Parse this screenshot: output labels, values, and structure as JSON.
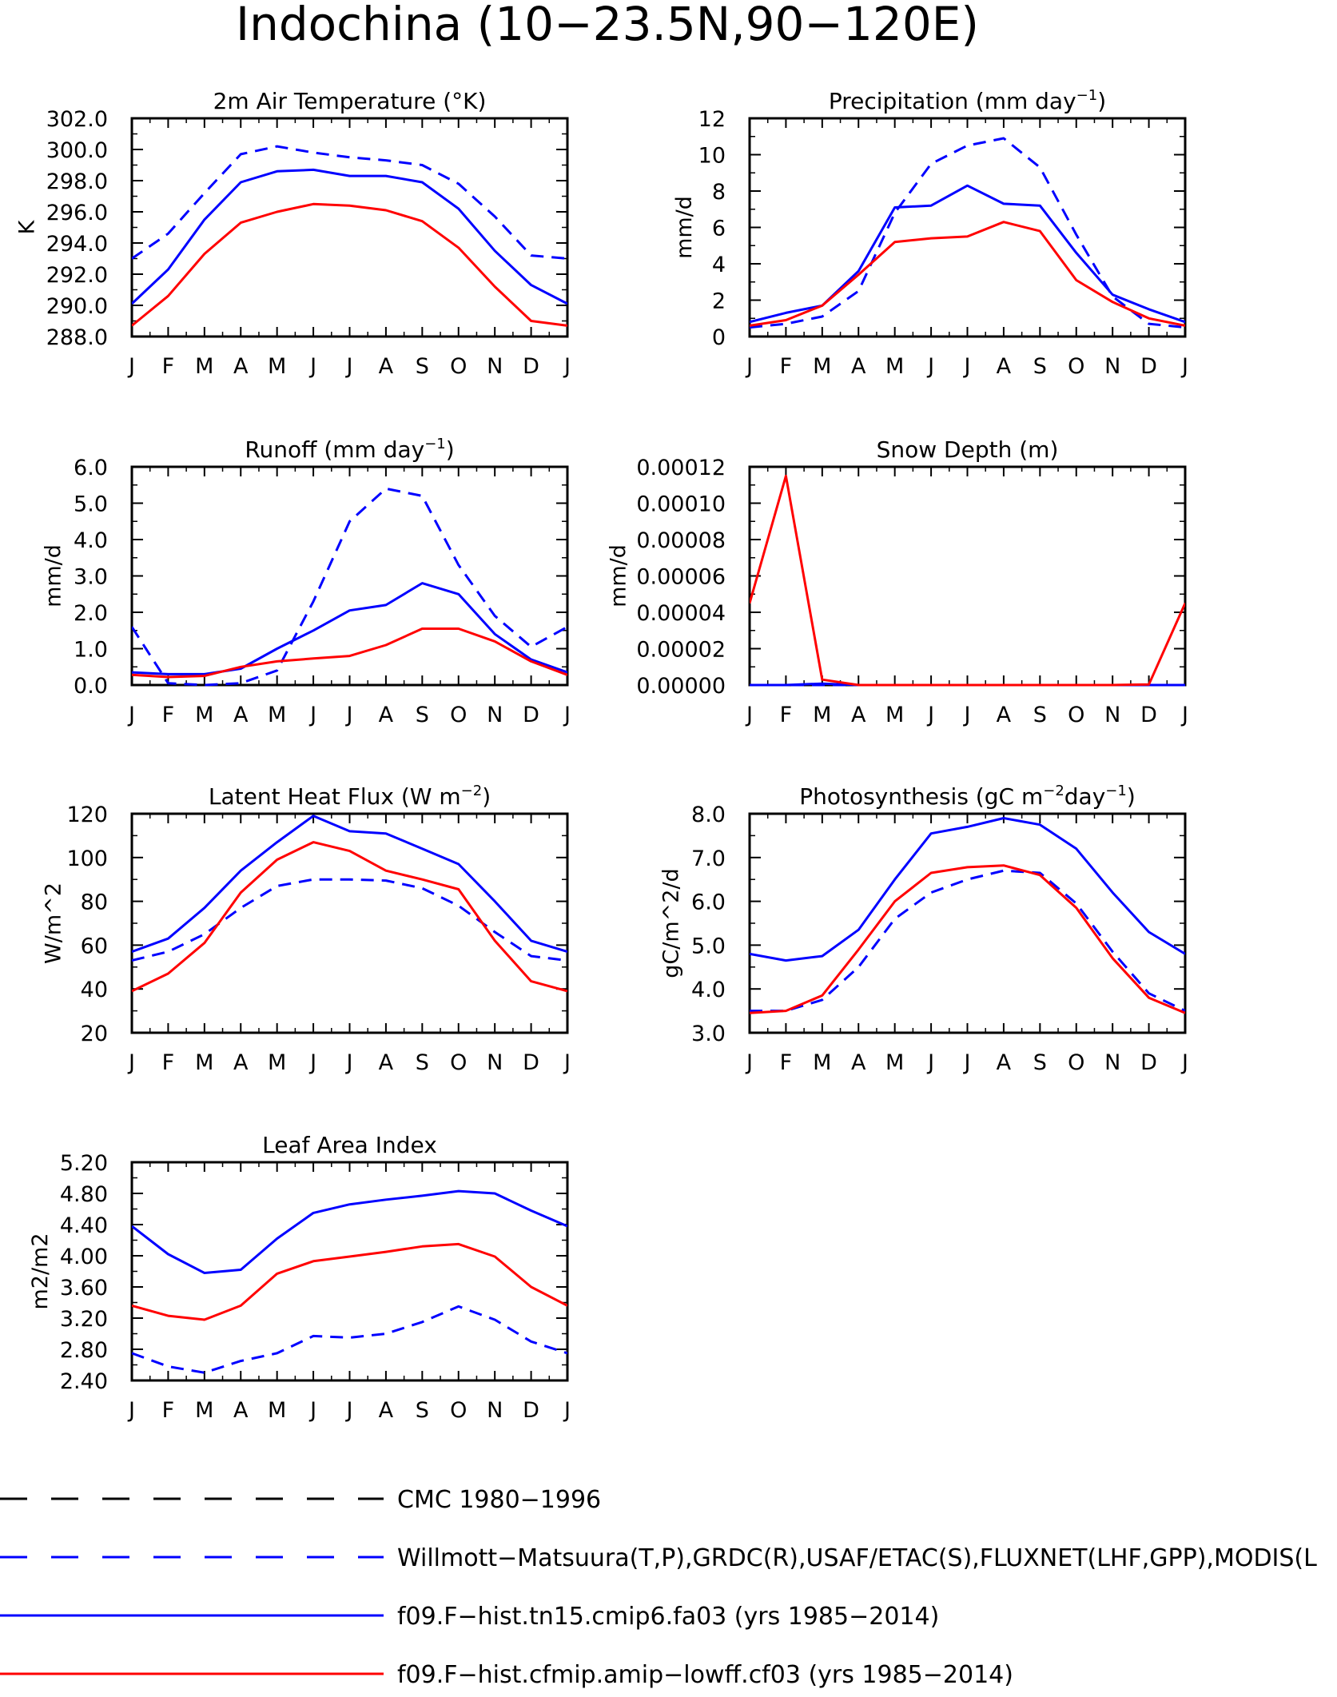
{
  "figure_title": "Indochina (10−23.5N,90−120E)",
  "months": [
    "J",
    "F",
    "M",
    "A",
    "M",
    "J",
    "J",
    "A",
    "S",
    "O",
    "N",
    "D",
    "J"
  ],
  "legend": [
    {
      "label": "CMC 1980−1996",
      "color": "#000000",
      "dashed": true
    },
    {
      "label": "Willmott−Matsuura(T,P),GRDC(R),USAF/ETAC(S),FLUXNET(LHF,GPP),MODIS(L",
      "color": "#0000ff",
      "dashed": true
    },
    {
      "label": "f09.F−hist.tn15.cmip6.fa03 (yrs 1985−2014)",
      "color": "#0000ff",
      "dashed": false
    },
    {
      "label": "f09.F−hist.cfmip.amip−lowff.cf03 (yrs 1985−2014)",
      "color": "#ff0000",
      "dashed": false
    }
  ],
  "chart_data": [
    {
      "type": "line",
      "title": "2m Air Temperature (°K)",
      "ylabel": "K",
      "ylim": [
        288,
        302
      ],
      "yticks": [
        288,
        290,
        292,
        294,
        296,
        298,
        300,
        302
      ],
      "yticklabels": [
        "288.0",
        "290.0",
        "292.0",
        "294.0",
        "296.0",
        "298.0",
        "300.0",
        "302.0"
      ],
      "series": [
        {
          "color": "#0000ff",
          "dashed": true,
          "values": [
            293.0,
            294.6,
            297.2,
            299.7,
            300.2,
            299.8,
            299.5,
            299.3,
            299.0,
            297.8,
            295.7,
            293.2,
            293.0
          ]
        },
        {
          "color": "#0000ff",
          "dashed": false,
          "values": [
            290.1,
            292.3,
            295.5,
            297.9,
            298.6,
            298.7,
            298.3,
            298.3,
            297.9,
            296.2,
            293.5,
            291.3,
            290.1
          ]
        },
        {
          "color": "#ff0000",
          "dashed": false,
          "values": [
            288.7,
            290.6,
            293.3,
            295.3,
            296.0,
            296.5,
            296.4,
            296.1,
            295.4,
            293.7,
            291.2,
            289.0,
            288.7
          ]
        }
      ]
    },
    {
      "type": "line",
      "title": "Precipitation (mm day",
      "title_sup": "−1",
      "title_tail": ")",
      "ylabel": "mm/d",
      "ylim": [
        0,
        12
      ],
      "yticks": [
        0,
        2,
        4,
        6,
        8,
        10,
        12
      ],
      "yticklabels": [
        "0",
        "2",
        "4",
        "6",
        "8",
        "10",
        "12"
      ],
      "series": [
        {
          "color": "#0000ff",
          "dashed": true,
          "values": [
            0.5,
            0.7,
            1.1,
            2.5,
            6.8,
            9.5,
            10.5,
            10.9,
            9.3,
            5.6,
            2.2,
            0.7,
            0.5
          ]
        },
        {
          "color": "#0000ff",
          "dashed": false,
          "values": [
            0.8,
            1.3,
            1.7,
            3.6,
            7.1,
            7.2,
            8.3,
            7.3,
            7.2,
            4.6,
            2.3,
            1.5,
            0.8
          ]
        },
        {
          "color": "#ff0000",
          "dashed": false,
          "values": [
            0.6,
            0.9,
            1.7,
            3.4,
            5.2,
            5.4,
            5.5,
            6.3,
            5.8,
            3.1,
            1.9,
            1.0,
            0.6
          ]
        }
      ]
    },
    {
      "type": "line",
      "title": "Runoff (mm day",
      "title_sup": "−1",
      "title_tail": ")",
      "ylabel": "mm/d",
      "ylim": [
        0,
        6
      ],
      "yticks": [
        0,
        1,
        2,
        3,
        4,
        5,
        6
      ],
      "yticklabels": [
        "0.0",
        "1.0",
        "2.0",
        "3.0",
        "4.0",
        "5.0",
        "6.0"
      ],
      "series": [
        {
          "color": "#0000ff",
          "dashed": true,
          "values": [
            1.6,
            0.05,
            0.0,
            0.05,
            0.4,
            2.3,
            4.5,
            5.4,
            5.2,
            3.3,
            1.9,
            1.05,
            1.6
          ]
        },
        {
          "color": "#0000ff",
          "dashed": false,
          "values": [
            0.35,
            0.3,
            0.3,
            0.45,
            1.0,
            1.5,
            2.05,
            2.2,
            2.8,
            2.5,
            1.4,
            0.7,
            0.35
          ]
        },
        {
          "color": "#ff0000",
          "dashed": false,
          "values": [
            0.28,
            0.22,
            0.25,
            0.5,
            0.65,
            0.73,
            0.8,
            1.1,
            1.55,
            1.55,
            1.2,
            0.65,
            0.28
          ]
        }
      ]
    },
    {
      "type": "line",
      "title": "Snow Depth (m)",
      "ylabel": "mm/d",
      "ylim": [
        0,
        0.00012
      ],
      "yticks": [
        0,
        2e-05,
        4e-05,
        6e-05,
        8e-05,
        0.0001,
        0.00012
      ],
      "yticklabels": [
        "0.00000",
        "0.00002",
        "0.00004",
        "0.00006",
        "0.00008",
        "0.00010",
        "0.00012"
      ],
      "series": [
        {
          "color": "#0000ff",
          "dashed": true,
          "values": [
            0,
            0,
            0,
            0,
            0,
            0,
            0,
            0,
            0,
            0,
            0,
            0,
            0
          ]
        },
        {
          "color": "#0000ff",
          "dashed": false,
          "values": [
            0,
            0,
            8e-07,
            0,
            0,
            0,
            0,
            0,
            0,
            0,
            0,
            0,
            0
          ]
        },
        {
          "color": "#ff0000",
          "dashed": false,
          "values": [
            4.5e-05,
            0.000115,
            3e-06,
            0,
            0,
            0,
            0,
            0,
            0,
            0,
            0,
            3e-07,
            4.5e-05
          ]
        }
      ]
    },
    {
      "type": "line",
      "title": "Latent Heat Flux (W m",
      "title_sup": "−2",
      "title_tail": ")",
      "ylabel": "W/m^2",
      "ylim": [
        20,
        120
      ],
      "yticks": [
        20,
        40,
        60,
        80,
        100,
        120
      ],
      "yticklabels": [
        "20",
        "40",
        "60",
        "80",
        "100",
        "120"
      ],
      "series": [
        {
          "color": "#0000ff",
          "dashed": true,
          "values": [
            53,
            57,
            65,
            77,
            87,
            90,
            90,
            89.5,
            86,
            78,
            66,
            55,
            53
          ]
        },
        {
          "color": "#0000ff",
          "dashed": false,
          "values": [
            57,
            63,
            77,
            94,
            107,
            119,
            112,
            111,
            104,
            97,
            80,
            62,
            57
          ]
        },
        {
          "color": "#ff0000",
          "dashed": false,
          "values": [
            39,
            47,
            61,
            84,
            99,
            107,
            103,
            94,
            90,
            85.5,
            62,
            43.5,
            39
          ]
        }
      ]
    },
    {
      "type": "line",
      "title": "Photosynthesis (gC m",
      "title_sup": "−2",
      "title_mid": "day",
      "title_sup2": "−1",
      "title_tail": ")",
      "ylabel": "gC/m^2/d",
      "ylim": [
        3,
        8
      ],
      "yticks": [
        3,
        4,
        5,
        6,
        7,
        8
      ],
      "yticklabels": [
        "3.0",
        "4.0",
        "5.0",
        "6.0",
        "7.0",
        "8.0"
      ],
      "series": [
        {
          "color": "#0000ff",
          "dashed": true,
          "values": [
            3.5,
            3.5,
            3.75,
            4.5,
            5.6,
            6.2,
            6.5,
            6.7,
            6.65,
            5.95,
            4.85,
            3.9,
            3.5
          ]
        },
        {
          "color": "#0000ff",
          "dashed": false,
          "values": [
            4.8,
            4.65,
            4.75,
            5.35,
            6.5,
            7.55,
            7.7,
            7.9,
            7.75,
            7.2,
            6.2,
            5.3,
            4.8
          ]
        },
        {
          "color": "#ff0000",
          "dashed": false,
          "values": [
            3.45,
            3.5,
            3.85,
            4.9,
            6.0,
            6.65,
            6.78,
            6.82,
            6.6,
            5.85,
            4.7,
            3.8,
            3.45
          ]
        }
      ]
    },
    {
      "type": "line",
      "title": "Leaf Area Index",
      "ylabel": "m2/m2",
      "ylim": [
        2.4,
        5.2
      ],
      "yticks": [
        2.4,
        2.8,
        3.2,
        3.6,
        4.0,
        4.4,
        4.8,
        5.2
      ],
      "yticklabels": [
        "2.40",
        "2.80",
        "3.20",
        "3.60",
        "4.00",
        "4.40",
        "4.80",
        "5.20"
      ],
      "series": [
        {
          "color": "#0000ff",
          "dashed": true,
          "values": [
            2.75,
            2.58,
            2.5,
            2.65,
            2.75,
            2.97,
            2.95,
            3.0,
            3.15,
            3.35,
            3.18,
            2.9,
            2.75
          ]
        },
        {
          "color": "#0000ff",
          "dashed": false,
          "values": [
            4.38,
            4.02,
            3.78,
            3.82,
            4.22,
            4.55,
            4.66,
            4.72,
            4.77,
            4.83,
            4.8,
            4.58,
            4.38
          ]
        },
        {
          "color": "#ff0000",
          "dashed": false,
          "values": [
            3.36,
            3.23,
            3.18,
            3.36,
            3.77,
            3.93,
            3.99,
            4.05,
            4.12,
            4.15,
            3.99,
            3.6,
            3.36
          ]
        }
      ]
    }
  ]
}
